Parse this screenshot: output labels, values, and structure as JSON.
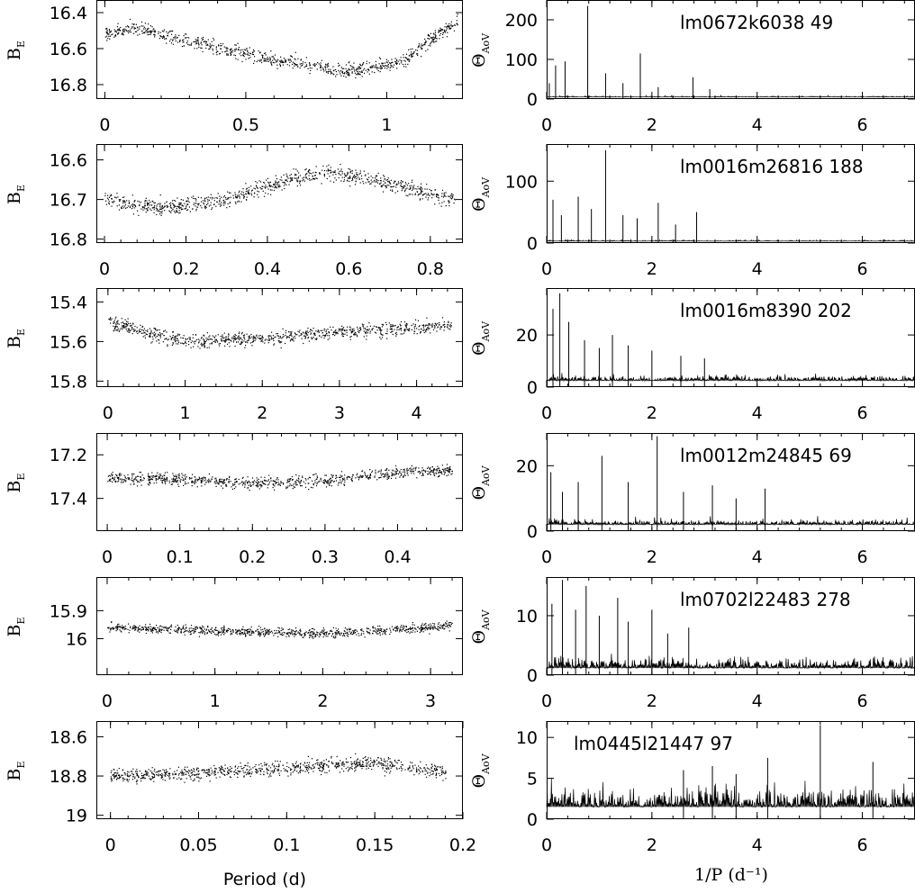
{
  "figure": {
    "xlabel_left": "Period (d)",
    "xlabel_right": "1/P (d⁻¹)",
    "ylabel_left": "B",
    "ylabel_left_sub": "E",
    "ylabel_right": "Θ",
    "ylabel_right_sub": "AoV"
  },
  "chart_data": [
    {
      "type": "scatter",
      "id": "phase-1",
      "xlim": [
        -0.03,
        1.27
      ],
      "ylim": [
        16.33,
        16.88
      ],
      "yinverted": true,
      "xticks": [
        0,
        0.5,
        1
      ],
      "xtick_labels": [
        "0",
        "0.5",
        "1"
      ],
      "yticks": [
        16.4,
        16.6,
        16.8
      ],
      "ytick_labels": [
        "16.4",
        "16.6",
        "16.8"
      ],
      "x_extent": [
        0,
        1.25
      ],
      "y_anchor_x": [
        0,
        0.1,
        0.35,
        0.6,
        0.85,
        1.05,
        1.15,
        1.25
      ],
      "y_anchor_y": [
        16.52,
        16.48,
        16.58,
        16.66,
        16.72,
        16.68,
        16.55,
        16.45
      ],
      "scatter_sd": 0.05
    },
    {
      "type": "line",
      "id": "aov-1",
      "star": "lm0672k6038 49",
      "xlim": [
        0,
        7
      ],
      "ylim": [
        0,
        250
      ],
      "xticks": [
        0,
        2,
        4,
        6
      ],
      "xtick_labels": [
        "0",
        "2",
        "4",
        "6"
      ],
      "yticks": [
        0,
        100,
        200
      ],
      "ytick_labels": [
        "0",
        "100",
        "200"
      ],
      "baseline": 5,
      "noise": 3,
      "peaks_x": [
        0.05,
        0.17,
        0.35,
        0.78,
        1.12,
        1.45,
        1.78,
        2.12,
        2.78,
        3.1
      ],
      "peaks_y": [
        40,
        85,
        95,
        235,
        65,
        40,
        115,
        30,
        55,
        25
      ]
    },
    {
      "type": "scatter",
      "id": "phase-2",
      "xlim": [
        -0.02,
        0.88
      ],
      "ylim": [
        16.56,
        16.81
      ],
      "yinverted": true,
      "xticks": [
        0,
        0.2,
        0.4,
        0.6,
        0.8
      ],
      "xtick_labels": [
        "0",
        "0.2",
        "0.4",
        "0.6",
        "0.8"
      ],
      "yticks": [
        16.6,
        16.7,
        16.8
      ],
      "ytick_labels": [
        "16.6",
        "16.7",
        "16.8"
      ],
      "x_extent": [
        0,
        0.86
      ],
      "y_anchor_x": [
        0,
        0.15,
        0.3,
        0.45,
        0.55,
        0.7,
        0.86
      ],
      "y_anchor_y": [
        16.7,
        16.72,
        16.7,
        16.65,
        16.63,
        16.66,
        16.7
      ],
      "scatter_sd": 0.025
    },
    {
      "type": "line",
      "id": "aov-2",
      "star": "lm0016m26816 188",
      "xlim": [
        0,
        7
      ],
      "ylim": [
        0,
        160
      ],
      "xticks": [
        0,
        2,
        4,
        6
      ],
      "xtick_labels": [
        "0",
        "2",
        "4",
        "6"
      ],
      "yticks": [
        0,
        100
      ],
      "ytick_labels": [
        "0",
        "100"
      ],
      "baseline": 3,
      "noise": 2,
      "peaks_x": [
        0.12,
        0.28,
        0.6,
        0.85,
        1.12,
        1.45,
        1.72,
        2.12,
        2.45,
        2.85
      ],
      "peaks_y": [
        70,
        45,
        75,
        55,
        150,
        45,
        40,
        65,
        30,
        50
      ]
    },
    {
      "type": "scatter",
      "id": "phase-3",
      "xlim": [
        -0.15,
        4.6
      ],
      "ylim": [
        15.33,
        15.83
      ],
      "yinverted": true,
      "xticks": [
        0,
        1,
        2,
        3,
        4
      ],
      "xtick_labels": [
        "0",
        "1",
        "2",
        "3",
        "4"
      ],
      "yticks": [
        15.4,
        15.6,
        15.8
      ],
      "ytick_labels": [
        "15.4",
        "15.6",
        "15.8"
      ],
      "x_extent": [
        0,
        4.45
      ],
      "y_anchor_x": [
        0,
        1,
        2,
        3,
        4,
        4.45
      ],
      "y_anchor_y": [
        15.5,
        15.6,
        15.58,
        15.55,
        15.53,
        15.52
      ],
      "scatter_sd": 0.045
    },
    {
      "type": "line",
      "id": "aov-3",
      "star": "lm0016m8390 202",
      "xlim": [
        0,
        7
      ],
      "ylim": [
        0,
        38
      ],
      "xticks": [
        0,
        2,
        4,
        6
      ],
      "xtick_labels": [
        "0",
        "2",
        "4",
        "6"
      ],
      "yticks": [
        0,
        20
      ],
      "ytick_labels": [
        "0",
        "20"
      ],
      "baseline": 2.5,
      "noise": 2.5,
      "peaks_x": [
        0.12,
        0.25,
        0.42,
        0.72,
        1.0,
        1.25,
        1.55,
        2.0,
        2.55,
        3.0
      ],
      "peaks_y": [
        30,
        36,
        25,
        18,
        15,
        20,
        16,
        14,
        12,
        11
      ]
    },
    {
      "type": "scatter",
      "id": "phase-4",
      "xlim": [
        -0.015,
        0.49
      ],
      "ylim": [
        17.1,
        17.55
      ],
      "yinverted": true,
      "xticks": [
        0,
        0.1,
        0.2,
        0.3,
        0.4
      ],
      "xtick_labels": [
        "0",
        "0.1",
        "0.2",
        "0.3",
        "0.4"
      ],
      "yticks": [
        17.2,
        17.4
      ],
      "ytick_labels": [
        "17.2",
        "17.4"
      ],
      "x_extent": [
        0,
        0.475
      ],
      "y_anchor_x": [
        0,
        0.1,
        0.2,
        0.3,
        0.4,
        0.475
      ],
      "y_anchor_y": [
        17.3,
        17.31,
        17.33,
        17.32,
        17.28,
        17.27
      ],
      "scatter_sd": 0.035
    },
    {
      "type": "line",
      "id": "aov-4",
      "star": "lm0012m24845 69",
      "xlim": [
        0,
        7
      ],
      "ylim": [
        0,
        30
      ],
      "xticks": [
        0,
        2,
        4,
        6
      ],
      "xtick_labels": [
        "0",
        "2",
        "4",
        "6"
      ],
      "yticks": [
        0,
        20
      ],
      "ytick_labels": [
        "0",
        "20"
      ],
      "baseline": 2,
      "noise": 2,
      "peaks_x": [
        0.08,
        0.3,
        0.6,
        1.05,
        1.55,
        2.1,
        2.6,
        3.15,
        3.6,
        4.15
      ],
      "peaks_y": [
        18,
        12,
        15,
        23,
        15,
        29,
        12,
        14,
        10,
        13
      ]
    },
    {
      "type": "scatter",
      "id": "phase-5",
      "xlim": [
        -0.1,
        3.3
      ],
      "ylim": [
        15.78,
        16.13
      ],
      "yinverted": true,
      "xticks": [
        0,
        1,
        2,
        3
      ],
      "xtick_labels": [
        "0",
        "1",
        "2",
        "3"
      ],
      "yticks": [
        15.9,
        16
      ],
      "ytick_labels": [
        "15.9",
        "16"
      ],
      "x_extent": [
        0,
        3.2
      ],
      "y_anchor_x": [
        0,
        1,
        2,
        3,
        3.2
      ],
      "y_anchor_y": [
        15.96,
        15.97,
        15.98,
        15.96,
        15.95
      ],
      "scatter_sd": 0.02
    },
    {
      "type": "line",
      "id": "aov-5",
      "star": "lm0702l22483 278",
      "xlim": [
        0,
        7
      ],
      "ylim": [
        0,
        16.5
      ],
      "xticks": [
        0,
        2,
        4,
        6
      ],
      "xtick_labels": [
        "0",
        "2",
        "4",
        "6"
      ],
      "yticks": [
        0,
        10
      ],
      "ytick_labels": [
        "0",
        "10"
      ],
      "baseline": 1.2,
      "noise": 2,
      "peaks_x": [
        0.1,
        0.3,
        0.55,
        0.75,
        1.0,
        1.35,
        1.55,
        2.0,
        2.3,
        2.7
      ],
      "peaks_y": [
        12,
        16,
        11,
        15,
        10,
        13,
        9,
        11,
        7,
        8
      ]
    },
    {
      "type": "scatter",
      "id": "phase-6",
      "xlim": [
        -0.008,
        0.2
      ],
      "ylim": [
        18.52,
        19.02
      ],
      "yinverted": true,
      "xticks": [
        0,
        0.05,
        0.1,
        0.15,
        0.2
      ],
      "xtick_labels": [
        "0",
        "0.05",
        "0.1",
        "0.15",
        "0.2"
      ],
      "yticks": [
        18.6,
        18.8,
        19
      ],
      "ytick_labels": [
        "18.6",
        "18.8",
        "19"
      ],
      "x_extent": [
        0,
        0.19
      ],
      "y_anchor_x": [
        0,
        0.05,
        0.1,
        0.15,
        0.19
      ],
      "y_anchor_y": [
        18.8,
        18.78,
        18.76,
        18.73,
        18.78
      ],
      "scatter_sd": 0.045
    },
    {
      "type": "line",
      "id": "aov-6",
      "star": "lm0445l21447 97",
      "xlim": [
        0,
        7
      ],
      "ylim": [
        0,
        12
      ],
      "xticks": [
        0,
        2,
        4,
        6
      ],
      "xtick_labels": [
        "0",
        "2",
        "4",
        "6"
      ],
      "yticks": [
        0,
        5,
        10
      ],
      "ytick_labels": [
        "0",
        "5",
        "10"
      ],
      "baseline": 1.5,
      "noise": 3,
      "peaks_x": [
        2.6,
        3.15,
        3.6,
        4.2,
        5.2,
        6.2
      ],
      "peaks_y": [
        6,
        6.5,
        5.5,
        7.5,
        11.5,
        7
      ]
    }
  ]
}
